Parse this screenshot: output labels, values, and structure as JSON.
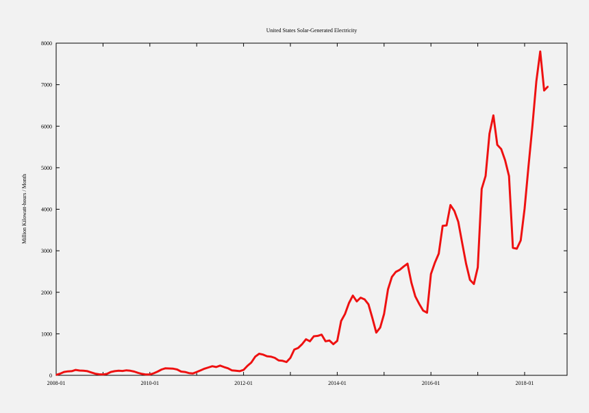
{
  "chart_data": {
    "type": "line",
    "title": "United States Solar-Generated Electricity",
    "xlabel": "",
    "ylabel": "Million Kilowatt-hours / Month",
    "ylim": [
      0,
      8000
    ],
    "y_ticks": [
      0,
      1000,
      2000,
      3000,
      4000,
      5000,
      6000,
      7000,
      8000
    ],
    "x_ticks": [
      "2008-01",
      "2010-01",
      "2012-01",
      "2014-01",
      "2016-01",
      "2018-01"
    ],
    "grid": false,
    "line_color": "#ee1111",
    "series": [
      {
        "values": [
          10,
          40,
          80,
          95,
          100,
          130,
          115,
          110,
          100,
          70,
          40,
          25,
          20,
          35,
          80,
          100,
          110,
          105,
          120,
          110,
          90,
          60,
          35,
          20,
          20,
          50,
          90,
          140,
          170,
          165,
          160,
          140,
          90,
          80,
          55,
          45,
          80,
          120,
          160,
          190,
          220,
          200,
          235,
          200,
          170,
          120,
          110,
          100,
          130,
          230,
          310,
          450,
          520,
          500,
          460,
          450,
          420,
          360,
          350,
          320,
          420,
          620,
          660,
          750,
          870,
          820,
          940,
          950,
          980,
          820,
          840,
          750,
          830,
          1310,
          1480,
          1740,
          1920,
          1780,
          1870,
          1830,
          1710,
          1380,
          1030,
          1150,
          1480,
          2070,
          2370,
          2490,
          2540,
          2620,
          2690,
          2230,
          1900,
          1720,
          1560,
          1510,
          2440,
          2710,
          2930,
          3600,
          3610,
          4100,
          3960,
          3700,
          3190,
          2690,
          2300,
          2200,
          2600,
          4490,
          4800,
          5820,
          6260,
          5550,
          5450,
          5180,
          4800,
          3070,
          3050,
          3250,
          4020,
          5040,
          6010,
          7080,
          7800,
          6860,
          6960
        ]
      }
    ]
  }
}
